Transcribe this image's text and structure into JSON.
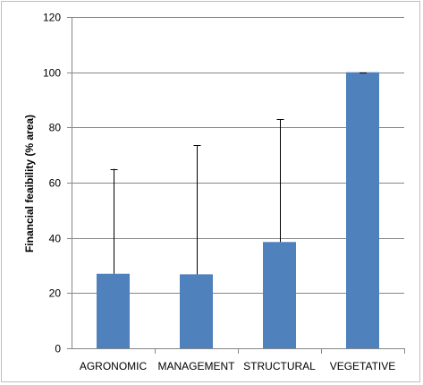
{
  "chart_data": {
    "type": "bar",
    "title": "",
    "xlabel": "",
    "ylabel": "Financial feaibility (% area)",
    "categories": [
      "AGRONOMIC",
      "MANAGEMENT",
      "STRUCTURAL",
      "VEGETATIVE"
    ],
    "series": [
      {
        "values": [
          27,
          26.8,
          38.5,
          100
        ],
        "error_plus": [
          38,
          46.8,
          44.5,
          0
        ]
      }
    ],
    "ylim": [
      0,
      120
    ],
    "yticks": [
      0,
      20,
      40,
      60,
      80,
      100,
      120
    ],
    "grid": "horizontal",
    "legend": "none",
    "colors": {
      "bar": "#4f81bd",
      "grid": "#868686",
      "axis": "#868686",
      "error_bar": "#000000"
    }
  }
}
